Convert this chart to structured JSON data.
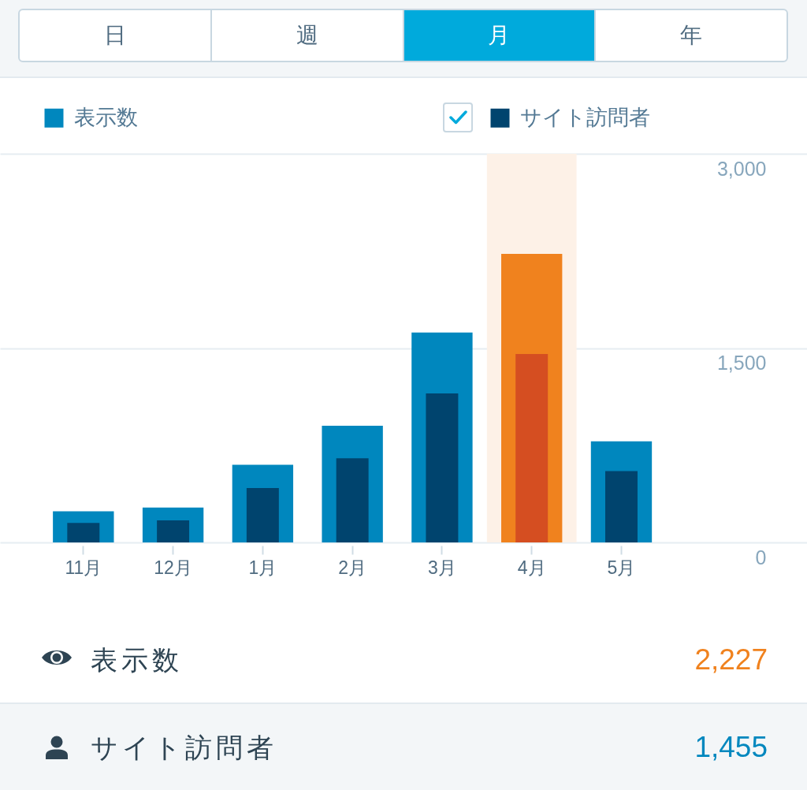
{
  "chart_data": {
    "type": "bar",
    "categories": [
      "11月",
      "12月",
      "1月",
      "2月",
      "3月",
      "4月",
      "5月"
    ],
    "series": [
      {
        "name": "表示数",
        "color": "#0087be",
        "colors": [
          "#0087be",
          "#0087be",
          "#0087be",
          "#0087be",
          "#0087be",
          "#f0821e",
          "#0087be"
        ],
        "values": [
          240,
          270,
          600,
          900,
          1620,
          2227,
          780
        ]
      },
      {
        "name": "サイト訪問者",
        "color": "#00446e",
        "colors": [
          "#00446e",
          "#00446e",
          "#00446e",
          "#00446e",
          "#00446e",
          "#d54e21",
          "#00446e"
        ],
        "values": [
          150,
          170,
          420,
          650,
          1150,
          1455,
          550
        ]
      }
    ],
    "ylim": [
      0,
      3000
    ],
    "yticks": [
      0,
      {
        "value": 1500,
        "label": "1,500"
      },
      {
        "value": 3000,
        "label": "3,000"
      }
    ],
    "grid": "y",
    "legend": "top",
    "bands": [
      {
        "axis": "x",
        "from": "4月",
        "to": "4月",
        "color": "#fdf1e7"
      }
    ],
    "annotations": [
      "日",
      "週",
      "月",
      "年",
      "2,227",
      "1,455"
    ]
  }
}
